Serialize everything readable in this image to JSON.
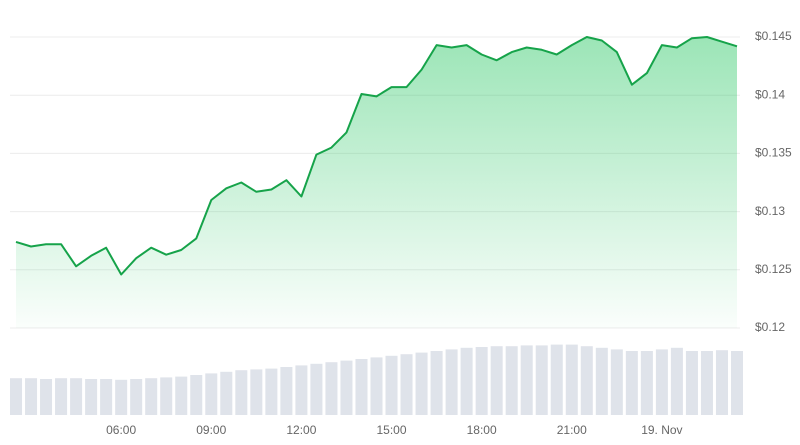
{
  "chart_data": {
    "type": "line",
    "x": [
      2.5,
      3,
      3.5,
      4,
      4.5,
      5,
      5.5,
      6,
      6.5,
      7,
      7.5,
      8,
      8.5,
      9,
      9.5,
      10,
      10.5,
      11,
      11.5,
      12,
      12.5,
      13,
      13.5,
      14,
      14.5,
      15,
      15.5,
      16,
      16.5,
      17,
      17.5,
      18,
      18.5,
      19,
      19.5,
      20,
      20.5,
      21,
      21.5,
      22,
      22.5,
      23,
      23.5,
      24,
      24.5,
      25,
      25.5,
      26,
      26.5
    ],
    "series": [
      {
        "color": "#16a34a",
        "values": [
          0.1274,
          0.127,
          0.1272,
          0.1272,
          0.1253,
          0.1262,
          0.1269,
          0.1246,
          0.126,
          0.1269,
          0.1263,
          0.1267,
          0.1277,
          0.131,
          0.132,
          0.1325,
          0.1317,
          0.1319,
          0.1327,
          0.1313,
          0.1349,
          0.1355,
          0.1368,
          0.1401,
          0.1399,
          0.1407,
          0.1407,
          0.1422,
          0.1443,
          0.1441,
          0.1443,
          0.1435,
          0.143,
          0.1437,
          0.1441,
          0.1439,
          0.1435,
          0.1443,
          0.145,
          0.1447,
          0.1437,
          0.1409,
          0.1419,
          0.1443,
          0.1441,
          0.1449,
          0.145,
          0.1446,
          0.1442
        ]
      },
      {
        "color": "#dfe3ea",
        "axis": "y2",
        "values": [
          46,
          46,
          45,
          46,
          46,
          45,
          45,
          44,
          45,
          46,
          47,
          48,
          50,
          52,
          54,
          56,
          57,
          58,
          60,
          62,
          64,
          66,
          68,
          70,
          72,
          74,
          76,
          78,
          80,
          82,
          84,
          85,
          86,
          86,
          87,
          87,
          88,
          88,
          86,
          84,
          82,
          80,
          80,
          82,
          84,
          80,
          80,
          81,
          80
        ]
      }
    ],
    "xlim": [
      2.3,
      26.6
    ],
    "xticks": [
      {
        "value": 6,
        "label": "06:00"
      },
      {
        "value": 9,
        "label": "09:00"
      },
      {
        "value": 12,
        "label": "12:00"
      },
      {
        "value": 15,
        "label": "15:00"
      },
      {
        "value": 18,
        "label": "18:00"
      },
      {
        "value": 21,
        "label": "21:00"
      },
      {
        "value": 24,
        "label": "19. Nov"
      }
    ],
    "ylim": [
      0.12,
      0.145
    ],
    "yticks": [
      {
        "value": 0.12,
        "label": "$0.12"
      },
      {
        "value": 0.125,
        "label": "$0.125"
      },
      {
        "value": 0.13,
        "label": "$0.13"
      },
      {
        "value": 0.135,
        "label": "$0.135"
      },
      {
        "value": 0.14,
        "label": "$0.14"
      },
      {
        "value": 0.145,
        "label": "$0.145"
      }
    ],
    "y2lim": [
      0,
      100
    ],
    "grid": true
  }
}
